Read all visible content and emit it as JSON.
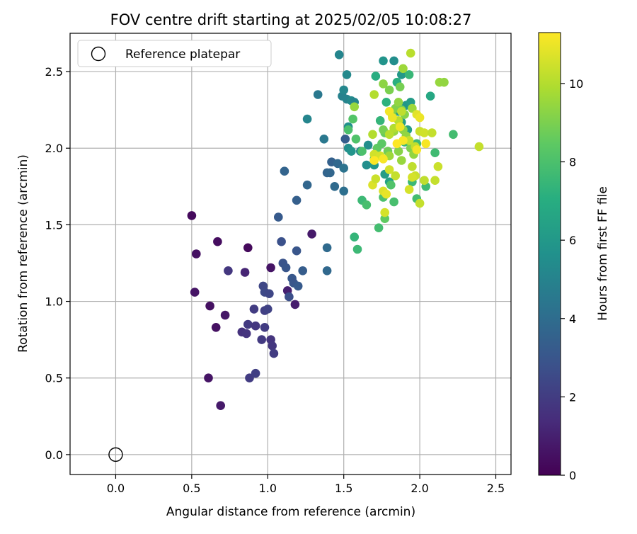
{
  "chart_data": {
    "type": "scatter",
    "title": "FOV centre drift starting at 2025/02/05 10:08:27",
    "xlabel": "Angular distance from reference (arcmin)",
    "ylabel": "Rotation from reference (arcmin)",
    "xlim": [
      -0.3,
      2.6
    ],
    "ylim": [
      -0.13,
      2.75
    ],
    "xticks": [
      "0.0",
      "0.5",
      "1.0",
      "1.5",
      "2.0",
      "2.5"
    ],
    "yticks": [
      "0.0",
      "0.5",
      "1.0",
      "1.5",
      "2.0",
      "2.5"
    ],
    "grid": true,
    "legend": {
      "position": "top-left",
      "entries": [
        "Reference platepar"
      ]
    },
    "colorbar": {
      "label": "Hours from first FF file",
      "colormap": "viridis",
      "range": [
        0,
        11.3
      ],
      "ticks": [
        "0",
        "2",
        "4",
        "6",
        "8",
        "10"
      ]
    },
    "reference_point": {
      "x": 0,
      "y": 0
    },
    "series": [
      {
        "points": [
          [
            0.5,
            1.56,
            0.3
          ],
          [
            0.53,
            1.31,
            0.5
          ],
          [
            0.67,
            1.39,
            0.4
          ],
          [
            0.87,
            1.35,
            0.3
          ],
          [
            0.52,
            1.06,
            0.6
          ],
          [
            0.62,
            0.97,
            0.5
          ],
          [
            0.72,
            0.91,
            0.7
          ],
          [
            0.66,
            0.83,
            0.5
          ],
          [
            0.61,
            0.5,
            0.6
          ],
          [
            0.69,
            0.32,
            0.8
          ],
          [
            1.02,
            1.22,
            0.6
          ],
          [
            1.29,
            1.44,
            0.8
          ],
          [
            0.85,
            1.19,
            1.2
          ],
          [
            0.74,
            1.2,
            1.8
          ],
          [
            1.13,
            1.07,
            1.0
          ],
          [
            1.18,
            0.98,
            0.9
          ],
          [
            0.83,
            0.8,
            1.6
          ],
          [
            0.86,
            0.79,
            1.7
          ],
          [
            0.87,
            0.85,
            1.9
          ],
          [
            0.91,
            0.95,
            2.0
          ],
          [
            0.92,
            0.84,
            1.8
          ],
          [
            0.96,
            0.75,
            1.9
          ],
          [
            0.98,
            0.94,
            2.1
          ],
          [
            1.0,
            0.95,
            2.2
          ],
          [
            0.98,
            0.83,
            2.0
          ],
          [
            1.02,
            0.75,
            1.7
          ],
          [
            1.03,
            0.71,
            1.8
          ],
          [
            1.04,
            0.66,
            2.0
          ],
          [
            0.88,
            0.5,
            2.0
          ],
          [
            0.92,
            0.53,
            2.1
          ],
          [
            0.97,
            1.1,
            2.4
          ],
          [
            0.98,
            1.06,
            2.5
          ],
          [
            1.01,
            1.05,
            2.4
          ],
          [
            1.09,
            1.39,
            2.8
          ],
          [
            1.1,
            1.25,
            2.9
          ],
          [
            1.12,
            1.22,
            3.0
          ],
          [
            1.14,
            1.03,
            2.7
          ],
          [
            1.16,
            1.15,
            3.1
          ],
          [
            1.17,
            1.12,
            3.0
          ],
          [
            1.2,
            1.1,
            3.2
          ],
          [
            1.19,
            1.33,
            3.0
          ],
          [
            1.23,
            1.2,
            3.3
          ],
          [
            1.07,
            1.55,
            3.2
          ],
          [
            1.19,
            1.66,
            3.4
          ],
          [
            1.11,
            1.85,
            3.6
          ],
          [
            1.26,
            1.76,
            3.7
          ],
          [
            1.39,
            1.35,
            3.9
          ],
          [
            1.39,
            1.2,
            3.8
          ],
          [
            1.39,
            1.84,
            3.6
          ],
          [
            1.42,
            1.91,
            3.5
          ],
          [
            1.41,
            1.84,
            3.7
          ],
          [
            1.44,
            1.75,
            3.9
          ],
          [
            1.46,
            1.9,
            3.8
          ],
          [
            1.5,
            1.72,
            4.1
          ],
          [
            1.5,
            1.87,
            4.3
          ],
          [
            1.51,
            2.06,
            3.3
          ],
          [
            1.37,
            2.06,
            4.5
          ],
          [
            1.33,
            2.35,
            4.5
          ],
          [
            1.26,
            2.19,
            5.1
          ],
          [
            1.47,
            2.61,
            5.1
          ],
          [
            1.52,
            2.48,
            5.3
          ],
          [
            1.49,
            2.34,
            4.9
          ],
          [
            1.5,
            2.38,
            5.2
          ],
          [
            1.52,
            2.32,
            5.0
          ],
          [
            1.55,
            2.31,
            5.3
          ],
          [
            1.57,
            2.3,
            5.1
          ],
          [
            1.53,
            2.14,
            5.6
          ],
          [
            1.53,
            2.0,
            5.5
          ],
          [
            1.55,
            1.98,
            5.8
          ],
          [
            1.61,
            1.98,
            5.2
          ],
          [
            1.66,
            2.02,
            5.5
          ],
          [
            1.65,
            1.89,
            5.5
          ],
          [
            1.7,
            1.89,
            6.0
          ],
          [
            1.76,
            2.57,
            5.8
          ],
          [
            1.83,
            2.57,
            5.5
          ],
          [
            1.88,
            2.48,
            6.0
          ],
          [
            1.91,
            2.28,
            5.9
          ],
          [
            1.86,
            2.24,
            6.0
          ],
          [
            1.94,
            2.3,
            6.2
          ],
          [
            1.88,
            2.17,
            6.2
          ],
          [
            1.92,
            2.12,
            6.3
          ],
          [
            1.77,
            1.83,
            6.2
          ],
          [
            1.8,
            1.78,
            6.5
          ],
          [
            2.07,
            2.34,
            6.7
          ],
          [
            1.71,
            2.47,
            7.0
          ],
          [
            1.85,
            2.43,
            7.1
          ],
          [
            1.93,
            2.48,
            7.5
          ],
          [
            1.78,
            2.3,
            7.2
          ],
          [
            1.74,
            2.18,
            7.4
          ],
          [
            1.9,
            2.04,
            7.5
          ],
          [
            1.98,
            2.03,
            7.6
          ],
          [
            1.95,
            1.78,
            7.6
          ],
          [
            1.98,
            1.67,
            7.8
          ],
          [
            2.04,
            1.75,
            7.7
          ],
          [
            2.1,
            1.97,
            7.7
          ],
          [
            2.22,
            2.09,
            7.8
          ],
          [
            1.62,
            1.66,
            7.6
          ],
          [
            1.65,
            1.63,
            7.9
          ],
          [
            1.57,
            1.42,
            7.4
          ],
          [
            1.59,
            1.34,
            7.6
          ],
          [
            1.73,
            1.48,
            7.8
          ],
          [
            1.76,
            1.68,
            8.0
          ],
          [
            1.77,
            1.54,
            8.5
          ],
          [
            1.83,
            1.65,
            7.9
          ],
          [
            1.81,
            1.76,
            8.1
          ],
          [
            1.53,
            2.12,
            8.0
          ],
          [
            1.56,
            2.19,
            8.2
          ],
          [
            1.58,
            2.06,
            8.1
          ],
          [
            1.62,
            1.98,
            8.0
          ],
          [
            1.7,
            1.93,
            8.3
          ],
          [
            1.72,
            2.0,
            8.5
          ],
          [
            1.75,
            2.03,
            8.4
          ],
          [
            1.77,
            2.1,
            8.6
          ],
          [
            1.79,
            1.98,
            8.8
          ],
          [
            1.76,
            2.12,
            8.9
          ],
          [
            1.82,
            2.21,
            9.0
          ],
          [
            1.84,
            2.26,
            9.1
          ],
          [
            1.86,
            2.3,
            9.4
          ],
          [
            1.88,
            2.25,
            9.0
          ],
          [
            1.9,
            2.22,
            9.2
          ],
          [
            1.89,
            2.12,
            9.3
          ],
          [
            1.91,
            2.08,
            9.4
          ],
          [
            1.86,
            1.98,
            9.2
          ],
          [
            1.88,
            1.92,
            9.5
          ],
          [
            1.8,
            1.95,
            9.6
          ],
          [
            1.83,
            2.11,
            9.5
          ],
          [
            1.94,
            2.0,
            9.1
          ],
          [
            1.96,
            1.96,
            9.4
          ],
          [
            1.57,
            2.27,
            9.5
          ],
          [
            1.76,
            2.42,
            9.3
          ],
          [
            1.8,
            2.38,
            9.0
          ],
          [
            1.87,
            2.4,
            8.9
          ],
          [
            1.89,
            2.52,
            9.6
          ],
          [
            1.94,
            2.62,
            10.1
          ],
          [
            2.13,
            2.43,
            9.5
          ],
          [
            2.16,
            2.43,
            9.4
          ],
          [
            1.95,
            2.26,
            9.6
          ],
          [
            1.7,
            2.35,
            10.0
          ],
          [
            1.69,
            2.09,
            10.0
          ],
          [
            1.8,
            2.09,
            10.1
          ],
          [
            1.83,
            2.13,
            10.0
          ],
          [
            1.86,
            2.18,
            10.1
          ],
          [
            1.88,
            2.24,
            10.2
          ],
          [
            1.93,
            2.05,
            10.3
          ],
          [
            1.97,
            2.01,
            10.2
          ],
          [
            2.0,
            2.11,
            10.4
          ],
          [
            2.03,
            2.1,
            10.5
          ],
          [
            2.08,
            2.1,
            10.3
          ],
          [
            1.7,
            1.96,
            10.5
          ],
          [
            1.74,
            1.95,
            10.6
          ],
          [
            1.69,
            1.76,
            10.7
          ],
          [
            1.71,
            1.8,
            10.4
          ],
          [
            1.76,
            1.72,
            10.7
          ],
          [
            1.78,
            1.7,
            10.9
          ],
          [
            1.8,
            1.86,
            10.5
          ],
          [
            1.84,
            1.82,
            10.3
          ],
          [
            1.93,
            1.73,
            10.6
          ],
          [
            1.95,
            1.88,
            10.2
          ],
          [
            1.97,
            1.82,
            10.4
          ],
          [
            2.0,
            1.64,
            10.3
          ],
          [
            2.03,
            1.79,
            10.2
          ],
          [
            2.1,
            1.79,
            10.3
          ],
          [
            2.12,
            1.88,
            10.4
          ],
          [
            1.95,
            1.81,
            10.6
          ],
          [
            1.77,
            1.58,
            10.6
          ],
          [
            1.98,
            2.22,
            10.8
          ],
          [
            2.0,
            2.2,
            11.0
          ],
          [
            1.87,
            2.14,
            11.0
          ],
          [
            1.8,
            2.24,
            11.1
          ],
          [
            1.82,
            2.2,
            11.0
          ],
          [
            2.39,
            2.01,
            10.3
          ],
          [
            2.04,
            2.03,
            11.2
          ],
          [
            1.98,
            1.99,
            11.1
          ],
          [
            1.89,
            2.05,
            11.2
          ],
          [
            1.85,
            2.03,
            11.3
          ],
          [
            1.76,
            1.93,
            11.2
          ],
          [
            1.7,
            1.92,
            11.3
          ]
        ]
      }
    ]
  }
}
